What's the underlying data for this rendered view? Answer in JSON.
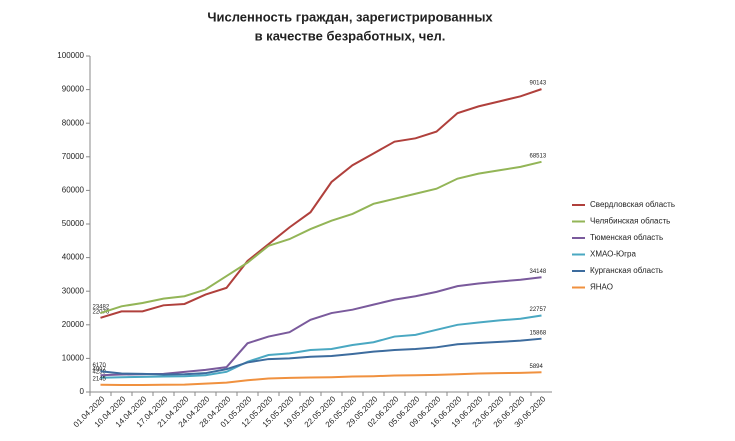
{
  "chart_data": {
    "type": "line",
    "title": [
      "Численность граждан, зарегистрированных",
      "в качестве безработных, чел."
    ],
    "categories": [
      "01.04.2020",
      "10.04.2020",
      "14.04.2020",
      "17.04.2020",
      "21.04.2020",
      "24.04.2020",
      "28.04.2020",
      "01.05.2020",
      "12.05.2020",
      "15.05.2020",
      "19.05.2020",
      "22.05.2020",
      "26.05.2020",
      "29.05.2020",
      "02.06.2020",
      "05.06.2020",
      "09.06.2020",
      "16.06.2020",
      "19.06.2020",
      "23.06.2020",
      "26.06.2020",
      "30.06.2020"
    ],
    "series": [
      {
        "name": "Свердловская область",
        "color": "#b0403c",
        "values": [
          22076,
          24000,
          24000,
          25800,
          26200,
          29000,
          31000,
          39000,
          44000,
          49000,
          53500,
          62500,
          67500,
          71000,
          74500,
          75500,
          77500,
          83000,
          85000,
          86500,
          88000,
          90143
        ]
      },
      {
        "name": "Челябинская область",
        "color": "#93b557",
        "values": [
          23482,
          25500,
          26500,
          27800,
          28500,
          30500,
          34500,
          38500,
          43500,
          45500,
          48500,
          51000,
          53000,
          56000,
          57500,
          59000,
          60500,
          63500,
          65000,
          66000,
          67000,
          68513
        ]
      },
      {
        "name": "Тюменская область",
        "color": "#7a5a9c",
        "values": [
          4997,
          5200,
          5300,
          5400,
          6000,
          6600,
          7400,
          14500,
          16500,
          17800,
          21500,
          23500,
          24500,
          26000,
          27500,
          28500,
          29800,
          31500,
          32300,
          32900,
          33400,
          34148
        ]
      },
      {
        "name": "ХМАО-Югра",
        "color": "#4aa8c2",
        "values": [
          4230,
          4400,
          4500,
          4600,
          4700,
          5000,
          6000,
          9000,
          11000,
          11500,
          12500,
          12800,
          14000,
          14800,
          16500,
          17000,
          18500,
          20000,
          20700,
          21300,
          21800,
          22757
        ]
      },
      {
        "name": "Курганская область",
        "color": "#3d6c9e",
        "values": [
          6170,
          5500,
          5400,
          5200,
          5300,
          5600,
          6800,
          8800,
          9800,
          10000,
          10500,
          10700,
          11300,
          12000,
          12500,
          12800,
          13300,
          14200,
          14600,
          14900,
          15300,
          15868
        ]
      },
      {
        "name": "ЯНАО",
        "color": "#f0913f",
        "values": [
          2145,
          2100,
          2100,
          2150,
          2200,
          2500,
          2800,
          3500,
          4000,
          4200,
          4300,
          4400,
          4600,
          4700,
          4900,
          5000,
          5100,
          5300,
          5500,
          5600,
          5700,
          5894
        ]
      }
    ],
    "ylim": [
      0,
      100000
    ],
    "yticks": [
      0,
      10000,
      20000,
      30000,
      40000,
      50000,
      60000,
      70000,
      80000,
      90000,
      100000
    ],
    "grid": false
  }
}
